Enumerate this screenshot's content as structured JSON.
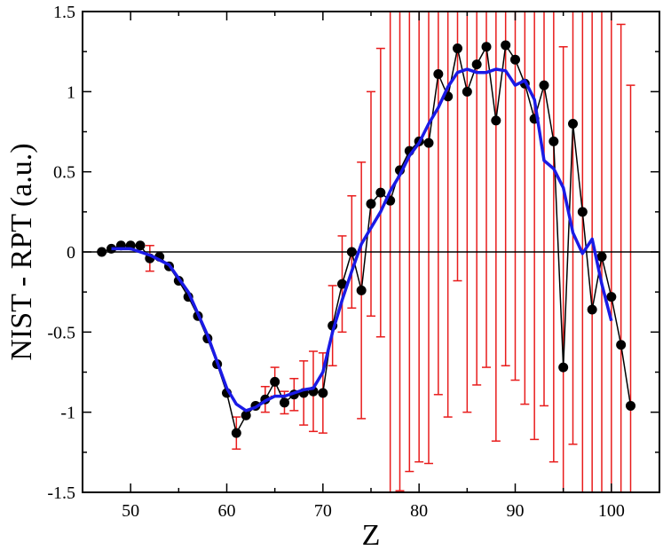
{
  "chart_data": {
    "type": "scatter",
    "title": "",
    "xlabel": "Z",
    "ylabel": "NIST - RPT (a.u.)",
    "xlim": [
      45,
      105
    ],
    "ylim": [
      -1.5,
      1.5
    ],
    "x_ticks": [
      50,
      60,
      70,
      80,
      90,
      100
    ],
    "y_ticks": [
      -1.5,
      -1,
      -0.5,
      0,
      0.5,
      1,
      1.5
    ],
    "x_tick_labels": [
      "50",
      "60",
      "70",
      "80",
      "90",
      "100"
    ],
    "y_tick_labels": [
      "-1.5",
      "-1",
      "-0.5",
      "0",
      "0.5",
      "1",
      "1.5"
    ],
    "grid": false,
    "legend": "none",
    "reference_line": 0,
    "series": [
      {
        "style": "black line with filled circle markers",
        "color": "#000000",
        "x": [
          47,
          48,
          49,
          50,
          51,
          52,
          53,
          54,
          55,
          56,
          57,
          58,
          59,
          60,
          61,
          62,
          63,
          64,
          65,
          66,
          67,
          68,
          69,
          70,
          71,
          72,
          73,
          74,
          75,
          76,
          77,
          78,
          79,
          80,
          81,
          82,
          83,
          84,
          85,
          86,
          87,
          88,
          89,
          90,
          91,
          92,
          93,
          94,
          95,
          96,
          97,
          98,
          99,
          100,
          101,
          102
        ],
        "y": [
          0.0,
          0.02,
          0.04,
          0.04,
          0.04,
          -0.04,
          -0.03,
          -0.09,
          -0.18,
          -0.28,
          -0.4,
          -0.54,
          -0.7,
          -0.88,
          -1.13,
          -1.02,
          -0.96,
          -0.92,
          -0.81,
          -0.94,
          -0.89,
          -0.88,
          -0.87,
          -0.88,
          -0.46,
          -0.2,
          0.0,
          -0.24,
          0.3,
          0.37,
          0.32,
          0.51,
          0.63,
          0.69,
          0.68,
          1.11,
          0.97,
          1.27,
          1.0,
          1.17,
          1.28,
          0.82,
          1.29,
          1.2,
          1.05,
          0.83,
          1.04,
          0.69,
          -0.72,
          0.8,
          0.25,
          -0.36,
          -0.03,
          -0.28,
          -0.58,
          -0.96
        ],
        "err": [
          0,
          0,
          0,
          0,
          0,
          0.08,
          0,
          0,
          0,
          0,
          0,
          0,
          0,
          0,
          0.1,
          0,
          0,
          0.08,
          0.09,
          0.07,
          0.1,
          0.2,
          0.25,
          0.25,
          0.25,
          0.3,
          0.35,
          0.8,
          0.7,
          0.9,
          2,
          2,
          2,
          2,
          2,
          2,
          2,
          1.45,
          2,
          2,
          2,
          2,
          2,
          2,
          2,
          2,
          2,
          2,
          2,
          2,
          2,
          2,
          2,
          2,
          2,
          2
        ]
      },
      {
        "style": "blue smooth line",
        "color": "#1a1ae6",
        "x": [
          48,
          50,
          52,
          54,
          56,
          58,
          60,
          61,
          62,
          63,
          64,
          65,
          66,
          67,
          68,
          69,
          70,
          71,
          72,
          73,
          74,
          75,
          76,
          77,
          78,
          79,
          80,
          81,
          82,
          83,
          84,
          85,
          86,
          87,
          88,
          89,
          90,
          91,
          92,
          93,
          94,
          95,
          96,
          97,
          98,
          99,
          100
        ],
        "y": [
          0.02,
          0.02,
          -0.02,
          -0.08,
          -0.25,
          -0.52,
          -0.85,
          -0.95,
          -0.99,
          -0.97,
          -0.93,
          -0.9,
          -0.9,
          -0.88,
          -0.86,
          -0.85,
          -0.75,
          -0.5,
          -0.3,
          -0.12,
          0.05,
          0.15,
          0.25,
          0.38,
          0.48,
          0.6,
          0.68,
          0.8,
          0.9,
          1.03,
          1.12,
          1.14,
          1.12,
          1.12,
          1.14,
          1.13,
          1.04,
          1.07,
          0.95,
          0.57,
          0.52,
          0.4,
          0.12,
          -0.01,
          0.08,
          -0.2,
          -0.43
        ]
      },
      {
        "style": "red error bars",
        "color": "#e81c1c"
      }
    ]
  }
}
